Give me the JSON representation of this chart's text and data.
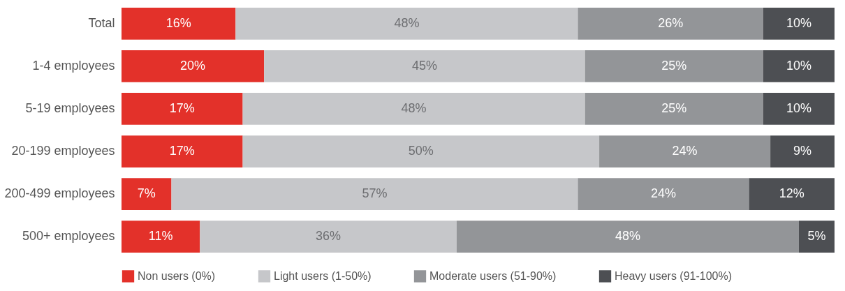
{
  "chart_data": {
    "type": "bar",
    "orientation": "horizontal",
    "stacked": true,
    "legend": "bottom",
    "tick_labels": "y",
    "grid": false,
    "categories": [
      "Total",
      "1-4 employees",
      "5-19 employees",
      "20-199 employees",
      "200-499 employees",
      "500+ employees"
    ],
    "series": [
      {
        "name": "Non users (0%)",
        "color": "#e3312a",
        "values": [
          16,
          20,
          17,
          17,
          7,
          11
        ],
        "value_labels": [
          "16%",
          "20%",
          "17%",
          "17%",
          "7%",
          "11%"
        ]
      },
      {
        "name": "Light users (1-50%)",
        "color": "#c6c7ca",
        "values": [
          48,
          45,
          48,
          50,
          57,
          36
        ],
        "value_labels": [
          "48%",
          "45%",
          "48%",
          "50%",
          "57%",
          "36%"
        ]
      },
      {
        "name": "Moderate users (51-90%)",
        "color": "#939598",
        "values": [
          26,
          25,
          25,
          24,
          24,
          48
        ],
        "value_labels": [
          "26%",
          "25%",
          "25%",
          "24%",
          "24%",
          "48%"
        ]
      },
      {
        "name": "Heavy users (91-100%)",
        "color": "#4d4f53",
        "values": [
          10,
          10,
          10,
          9,
          12,
          5
        ],
        "value_labels": [
          "10%",
          "10%",
          "10%",
          "9%",
          "12%",
          "5%"
        ]
      }
    ]
  }
}
